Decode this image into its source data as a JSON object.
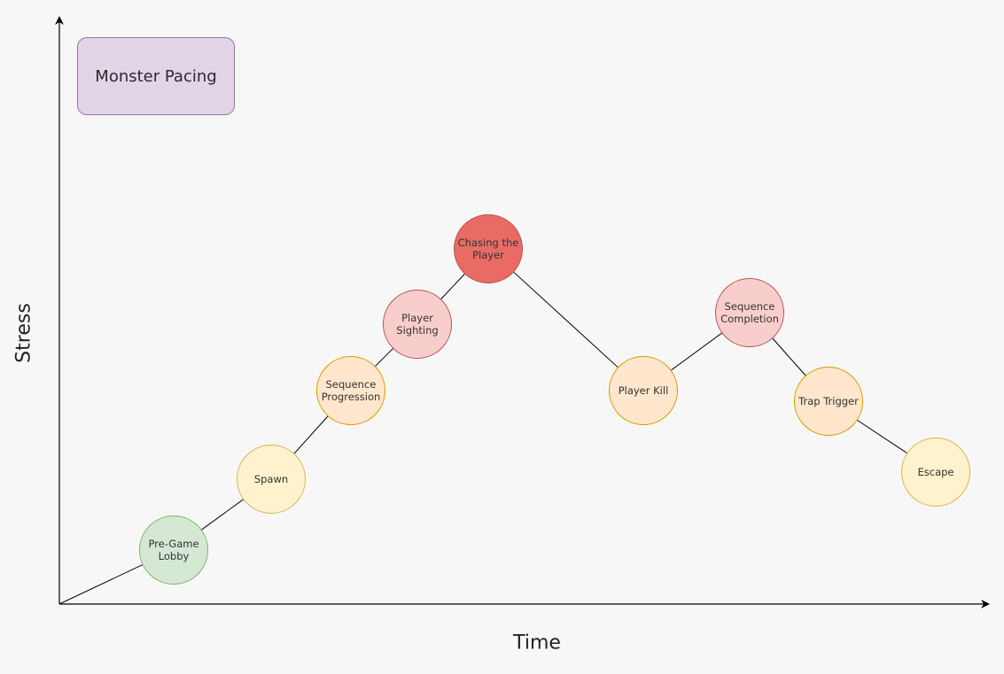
{
  "title": "Monster Pacing",
  "colors": {
    "background": "#f7f7f7",
    "title_fill": "#e1d5e7",
    "title_stroke": "#9673a6",
    "axis": "#000000",
    "link": "#000000"
  },
  "axes": {
    "x_label": "Time",
    "y_label": "Stress"
  },
  "nodes": [
    {
      "id": "pre-game-lobby",
      "label": "Pre-Game\nLobby",
      "fill": "#d5e8d4",
      "stroke": "#82b366"
    },
    {
      "id": "spawn",
      "label": "Spawn",
      "fill": "#fff2cc",
      "stroke": "#d6b656"
    },
    {
      "id": "sequence-progression",
      "label": "Sequence\nProgression",
      "fill": "#ffe6cc",
      "stroke": "#d79b00"
    },
    {
      "id": "player-sighting",
      "label": "Player\nSighting",
      "fill": "#f8cecc",
      "stroke": "#b85450"
    },
    {
      "id": "chasing-the-player",
      "label": "Chasing the\nPlayer",
      "fill": "#ea6b66",
      "stroke": "#b85450"
    },
    {
      "id": "player-kill",
      "label": "Player Kill",
      "fill": "#ffe6cc",
      "stroke": "#d79b00"
    },
    {
      "id": "sequence-completion",
      "label": "Sequence\nCompletion",
      "fill": "#f8cecc",
      "stroke": "#b85450"
    },
    {
      "id": "trap-trigger",
      "label": "Trap Trigger",
      "fill": "#ffe6cc",
      "stroke": "#d79b00"
    },
    {
      "id": "escape",
      "label": "Escape",
      "fill": "#fff2cc",
      "stroke": "#d6b656"
    }
  ]
}
